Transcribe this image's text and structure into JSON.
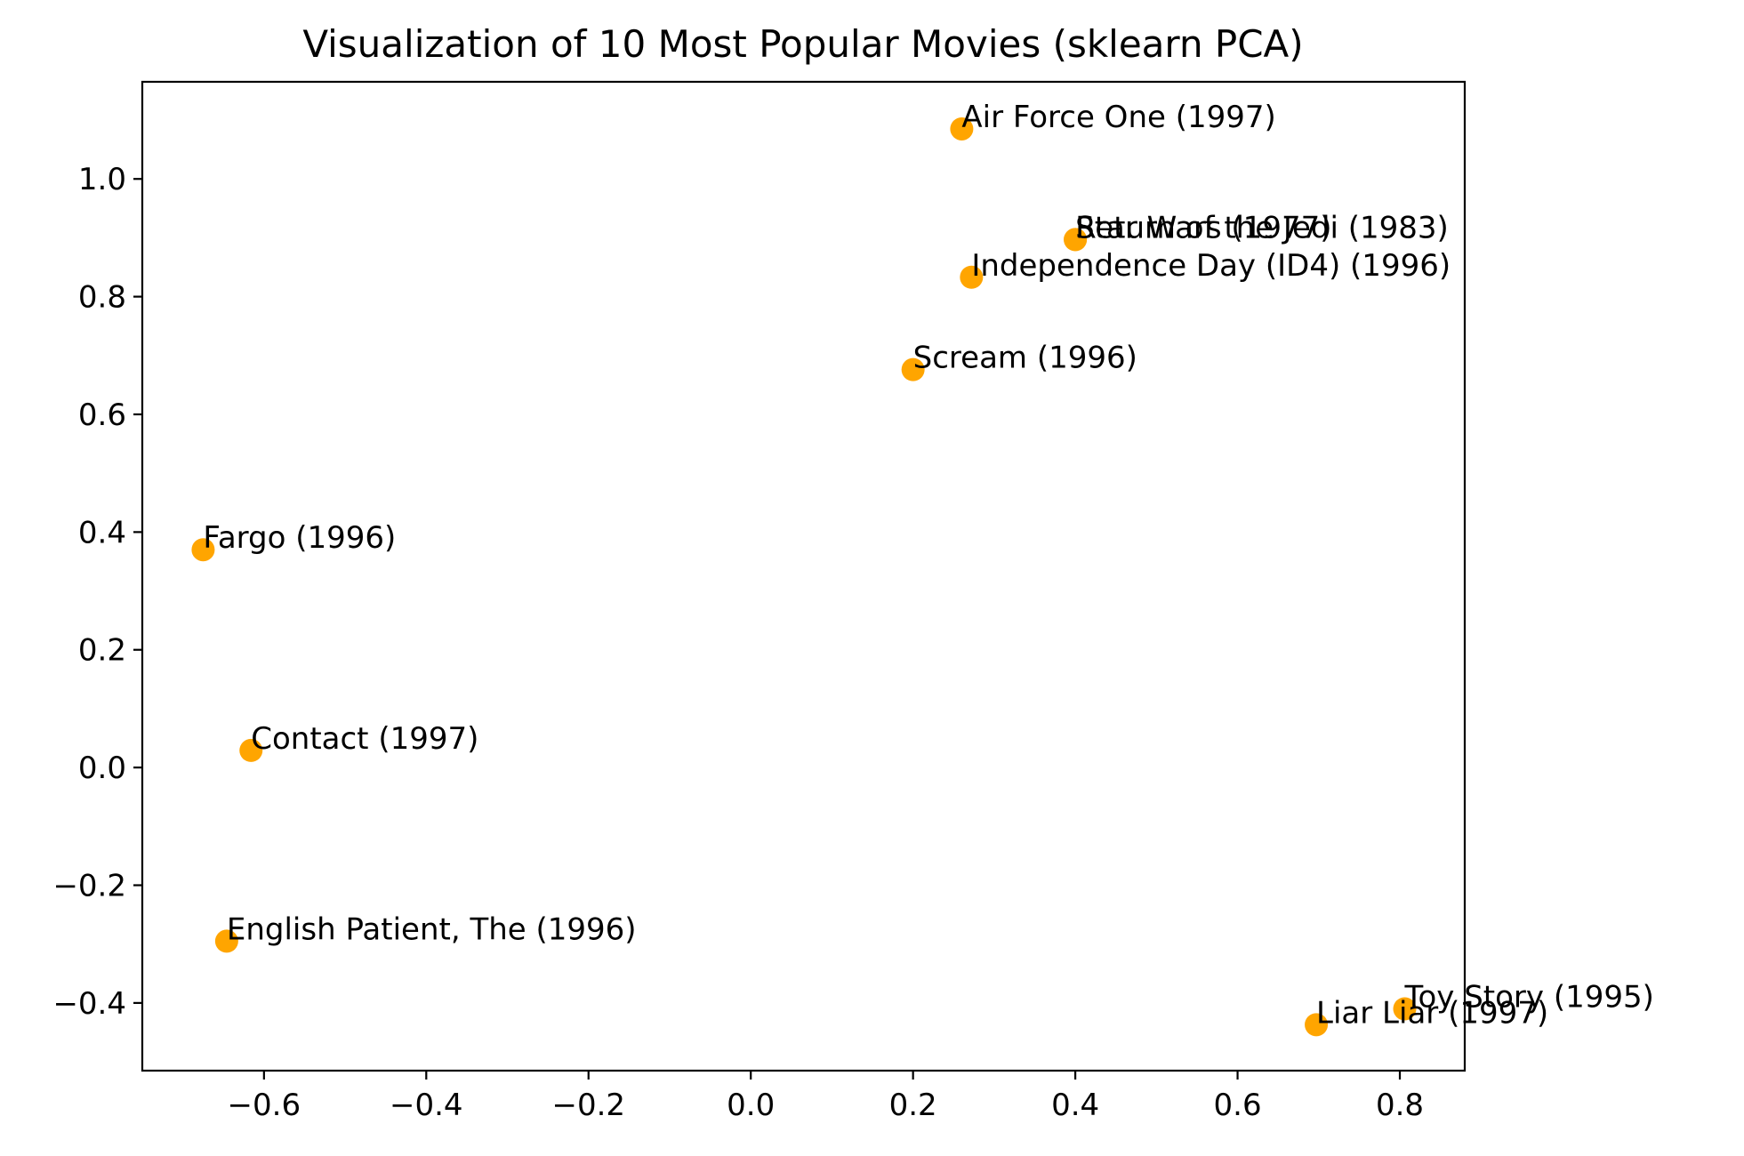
{
  "chart_data": {
    "type": "scatter",
    "title": "Visualization of 10 Most Popular Movies (sklearn PCA)",
    "xlabel": "",
    "ylabel": "",
    "xlim": [
      -0.75,
      0.88
    ],
    "ylim": [
      -0.515,
      1.165
    ],
    "x_ticks": [
      -0.6,
      -0.4,
      -0.2,
      0.0,
      0.2,
      0.4,
      0.6,
      0.8
    ],
    "x_tick_labels": [
      "−0.6",
      "−0.4",
      "−0.2",
      "0.0",
      "0.2",
      "0.4",
      "0.6",
      "0.8"
    ],
    "y_ticks": [
      -0.4,
      -0.2,
      0.0,
      0.2,
      0.4,
      0.6,
      0.8,
      1.0
    ],
    "y_tick_labels": [
      "−0.4",
      "−0.2",
      "0.0",
      "0.2",
      "0.4",
      "0.6",
      "0.8",
      "1.0"
    ],
    "grid": false,
    "marker_color": "#FFA500",
    "points": [
      {
        "label": "Air Force One (1997)",
        "x": 0.26,
        "y": 1.085
      },
      {
        "label": "Star Wars (1977)",
        "x": 0.4,
        "y": 0.897
      },
      {
        "label": "Return of the Jedi (1983)",
        "x": 0.4,
        "y": 0.897
      },
      {
        "label": "Independence Day (ID4) (1996)",
        "x": 0.272,
        "y": 0.833
      },
      {
        "label": "Scream (1996)",
        "x": 0.2,
        "y": 0.676
      },
      {
        "label": "Fargo (1996)",
        "x": -0.675,
        "y": 0.37
      },
      {
        "label": "Contact (1997)",
        "x": -0.616,
        "y": 0.029
      },
      {
        "label": "English Patient, The (1996)",
        "x": -0.646,
        "y": -0.295
      },
      {
        "label": "Toy Story (1995)",
        "x": 0.806,
        "y": -0.41
      },
      {
        "label": "Liar Liar (1997)",
        "x": 0.697,
        "y": -0.437
      }
    ]
  }
}
